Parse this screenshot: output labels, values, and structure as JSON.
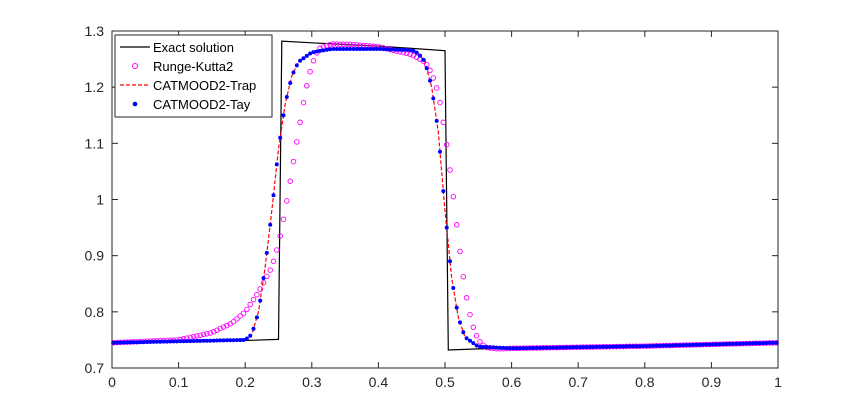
{
  "chart_data": {
    "type": "line",
    "title": "",
    "xlabel": "",
    "ylabel": "",
    "xlim": [
      0,
      1
    ],
    "ylim": [
      0.7,
      1.3
    ],
    "xticks": [
      0,
      0.1,
      0.2,
      0.3,
      0.4,
      0.5,
      0.6,
      0.7,
      0.8,
      0.9,
      1
    ],
    "xtick_labels": [
      "0",
      "0.1",
      "0.2",
      "0.3",
      "0.4",
      "0.5",
      "0.6",
      "0.7",
      "0.8",
      "0.9",
      "1"
    ],
    "yticks": [
      0.7,
      0.8,
      0.9,
      1.0,
      1.1,
      1.2,
      1.3
    ],
    "ytick_labels": [
      "0.7",
      "0.8",
      "0.9",
      "1",
      "1.1",
      "1.2",
      "1.3"
    ],
    "grid": false,
    "legend_position": "top-left",
    "series": [
      {
        "name": "Exact solution",
        "style": "solid-line",
        "color": "#000000",
        "x": [
          0,
          0.2,
          0.25,
          0.255,
          0.3,
          0.35,
          0.4,
          0.45,
          0.5,
          0.505,
          0.55,
          0.6,
          0.7,
          0.8,
          0.9,
          1.0
        ],
        "y": [
          0.745,
          0.749,
          0.751,
          1.282,
          1.279,
          1.276,
          1.273,
          1.269,
          1.265,
          0.732,
          0.734,
          0.735,
          0.737,
          0.739,
          0.742,
          0.745
        ]
      },
      {
        "name": "Runge-Kutta2",
        "style": "open-circles",
        "color": "#ff00ff",
        "x": [
          0,
          0.1,
          0.15,
          0.18,
          0.2,
          0.22,
          0.24,
          0.25,
          0.26,
          0.27,
          0.28,
          0.29,
          0.3,
          0.31,
          0.33,
          0.36,
          0.4,
          0.45,
          0.47,
          0.48,
          0.49,
          0.5,
          0.51,
          0.52,
          0.53,
          0.54,
          0.55,
          0.56,
          0.58,
          0.6,
          0.7,
          0.8,
          0.9,
          1.0
        ],
        "y": [
          0.745,
          0.75,
          0.763,
          0.78,
          0.8,
          0.835,
          0.88,
          0.92,
          0.98,
          1.05,
          1.12,
          1.19,
          1.24,
          1.268,
          1.277,
          1.276,
          1.272,
          1.258,
          1.245,
          1.225,
          1.19,
          1.12,
          1.03,
          0.93,
          0.84,
          0.78,
          0.75,
          0.737,
          0.734,
          0.735,
          0.737,
          0.739,
          0.742,
          0.745
        ]
      },
      {
        "name": "CATMOOD2-Trap",
        "style": "dashed-line",
        "color": "#ff0000",
        "x": [
          0,
          0.2,
          0.21,
          0.22,
          0.23,
          0.24,
          0.25,
          0.26,
          0.27,
          0.28,
          0.3,
          0.33,
          0.4,
          0.45,
          0.46,
          0.47,
          0.48,
          0.49,
          0.5,
          0.51,
          0.52,
          0.53,
          0.55,
          0.6,
          0.7,
          0.8,
          0.9,
          1.0
        ],
        "y": [
          0.745,
          0.75,
          0.76,
          0.8,
          0.88,
          0.98,
          1.09,
          1.17,
          1.22,
          1.245,
          1.262,
          1.268,
          1.268,
          1.266,
          1.26,
          1.245,
          1.2,
          1.12,
          0.98,
          0.86,
          0.79,
          0.755,
          0.738,
          0.735,
          0.737,
          0.739,
          0.742,
          0.745
        ]
      },
      {
        "name": "CATMOOD2-Tay",
        "style": "filled-dots",
        "color": "#0000ff",
        "x": [
          0,
          0.2,
          0.21,
          0.22,
          0.23,
          0.24,
          0.25,
          0.26,
          0.27,
          0.28,
          0.3,
          0.33,
          0.4,
          0.45,
          0.46,
          0.47,
          0.48,
          0.49,
          0.5,
          0.51,
          0.52,
          0.53,
          0.55,
          0.6,
          0.7,
          0.8,
          0.9,
          1.0
        ],
        "y": [
          0.745,
          0.75,
          0.76,
          0.8,
          0.88,
          0.98,
          1.09,
          1.17,
          1.22,
          1.245,
          1.262,
          1.268,
          1.268,
          1.266,
          1.26,
          1.245,
          1.2,
          1.12,
          0.98,
          0.86,
          0.79,
          0.755,
          0.738,
          0.735,
          0.737,
          0.739,
          0.742,
          0.745
        ]
      }
    ]
  }
}
